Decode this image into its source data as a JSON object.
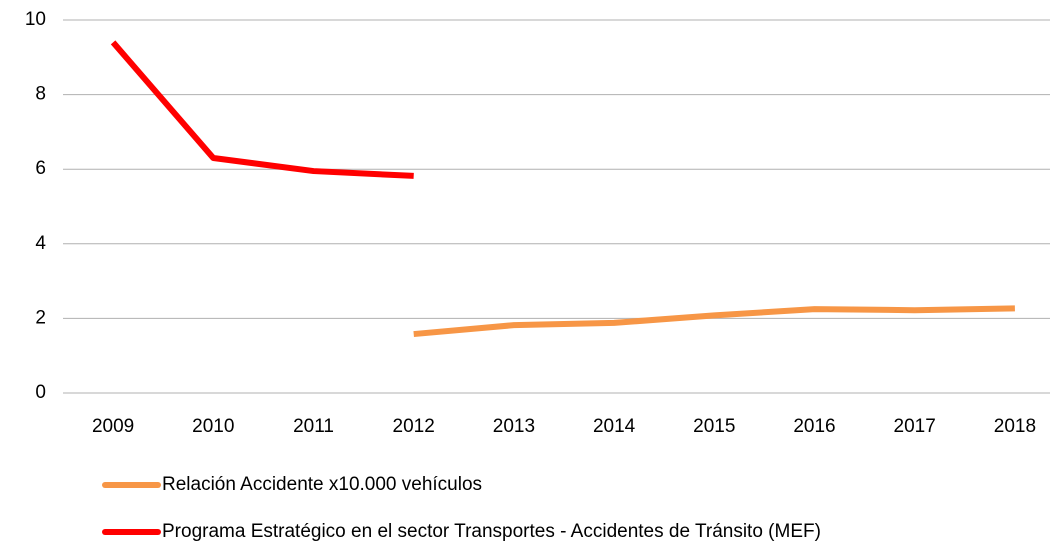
{
  "chart_data": {
    "type": "line",
    "categories": [
      "2009",
      "2010",
      "2011",
      "2012",
      "2013",
      "2014",
      "2015",
      "2016",
      "2017",
      "2018"
    ],
    "series": [
      {
        "name": "Relación Accidente x10.000 vehículos",
        "color": "#f79646",
        "values": [
          null,
          null,
          null,
          1.58,
          1.82,
          1.88,
          2.08,
          2.25,
          2.22,
          2.27
        ]
      },
      {
        "name": "Programa Estratégico en el sector Transportes - Accidentes de Tránsito (MEF)",
        "color": "#ff0000",
        "values": [
          9.4,
          6.3,
          5.95,
          5.82,
          null,
          null,
          null,
          null,
          null,
          null
        ]
      }
    ],
    "ylim": [
      0,
      10
    ],
    "yticks": [
      0,
      2,
      4,
      6,
      8,
      10
    ],
    "grid": true,
    "legend": "bottom"
  }
}
